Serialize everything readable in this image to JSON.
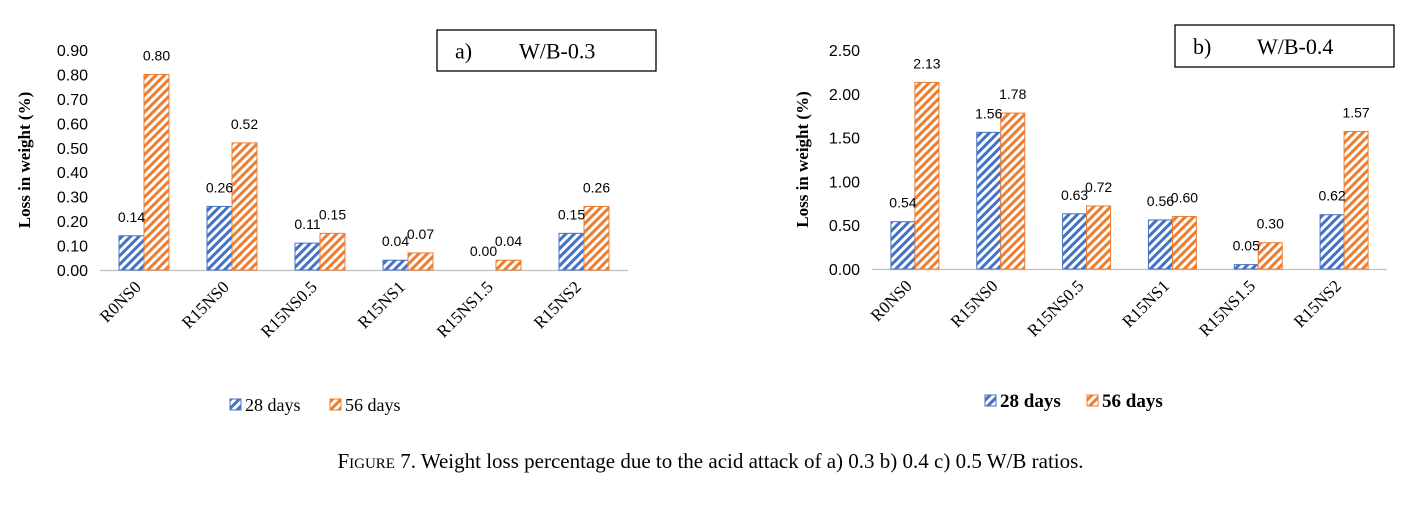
{
  "figure": {
    "caption_label": "Figure 7.",
    "caption_text": "Weight loss percentage due to the acid attack of a) 0.3 b) 0.4 c) 0.5 W/B ratios."
  },
  "colors": {
    "series_28": "#4472C4",
    "series_56": "#ED7D31",
    "axis": "#bfbfbf"
  },
  "chart_data": [
    {
      "type": "bar",
      "panel_label": "a)",
      "title": "W/B-0.3",
      "ylabel": "Loss in weight (%)",
      "xlabel": "",
      "ylim": [
        0,
        0.9
      ],
      "ytick_step": 0.1,
      "ytick_decimals": 2,
      "categories": [
        "R0NS0",
        "R15NS0",
        "R15NS0.5",
        "R15NS1",
        "R15NS1.5",
        "R15NS2"
      ],
      "series": [
        {
          "name": "28 days",
          "values": [
            0.14,
            0.26,
            0.11,
            0.04,
            0.0,
            0.15
          ]
        },
        {
          "name": "56 days",
          "values": [
            0.8,
            0.52,
            0.15,
            0.07,
            0.04,
            0.26
          ]
        }
      ],
      "legend": "bottom",
      "legend_bold": false,
      "grid": false
    },
    {
      "type": "bar",
      "panel_label": "b)",
      "title": "W/B-0.4",
      "ylabel": "Loss in weight (%)",
      "xlabel": "",
      "ylim": [
        0,
        2.5
      ],
      "ytick_step": 0.5,
      "ytick_decimals": 2,
      "categories": [
        "R0NS0",
        "R15NS0",
        "R15NS0.5",
        "R15NS1",
        "R15NS1.5",
        "R15NS2"
      ],
      "series": [
        {
          "name": "28 days",
          "values": [
            0.54,
            1.56,
            0.63,
            0.56,
            0.05,
            0.62
          ]
        },
        {
          "name": "56 days",
          "values": [
            2.13,
            1.78,
            0.72,
            0.6,
            0.3,
            1.57
          ]
        }
      ],
      "legend": "bottom",
      "legend_bold": true,
      "grid": false
    }
  ]
}
